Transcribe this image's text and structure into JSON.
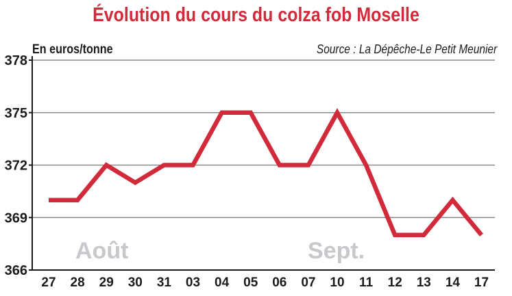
{
  "title": "Évolution du cours du colza fob Moselle",
  "unit_label": "En euros/tonne",
  "source_label": "Source : La Dépêche-Le Petit Meunier",
  "colors": {
    "line": "#d12a3a",
    "title": "#d12a3a",
    "grid": "#8a8a8a",
    "period_labels": "#c7c7cc"
  },
  "chart_data": {
    "type": "line",
    "title": "Évolution du cours du colza fob Moselle",
    "ylabel": "En euros/tonne",
    "xlabel": "",
    "categories": [
      "27",
      "28",
      "29",
      "30",
      "31",
      "03",
      "04",
      "05",
      "06",
      "07",
      "10",
      "11",
      "12",
      "13",
      "14",
      "17"
    ],
    "series": [
      {
        "values": [
          370,
          370,
          372,
          371,
          372,
          372,
          375,
          375,
          372,
          372,
          375,
          372,
          368,
          368,
          370,
          368
        ]
      }
    ],
    "ylim": [
      366,
      378
    ],
    "yticks": [
      "366",
      "369",
      "372",
      "375",
      "378"
    ],
    "grid": "horizontal",
    "annotations": [
      "Août",
      "Sept."
    ]
  }
}
